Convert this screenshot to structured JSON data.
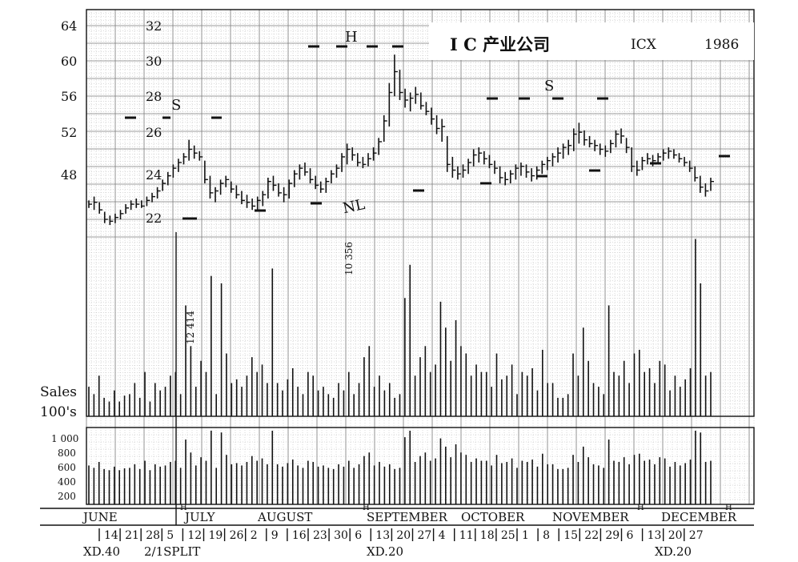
{
  "chart_data": {
    "type": "bar",
    "subtype": "ohlc-bar-with-volume",
    "title": "I C 产业公司",
    "ticker": "ICX",
    "year": "1986",
    "left_axis_ticks": [
      "64",
      "60",
      "56",
      "52",
      "48"
    ],
    "right_axis_ticks": [
      "32",
      "30",
      "28",
      "26",
      "24",
      "22"
    ],
    "price_range_adjusted": [
      21,
      32.5
    ],
    "volume_label_line1": "Sales",
    "volume_label_line2": "100's",
    "volume_axis_ticks": [
      "1 000",
      "800",
      "600",
      "400",
      "200"
    ],
    "annotations": {
      "left_shoulder": "S",
      "head": "H",
      "right_shoulder": "S",
      "neckline": "NL",
      "peak_volume_1": "12 414",
      "peak_volume_2": "10 356"
    },
    "months": [
      "JUNE",
      "JULY",
      "AUGUST",
      "SEPTEMBER",
      "OCTOBER",
      "NOVEMBER",
      "DECEMBER"
    ],
    "week_labels": [
      "14",
      "21",
      "28",
      "5",
      "12",
      "19",
      "26",
      "2",
      "9",
      "16",
      "23",
      "30",
      "6",
      "13",
      "20",
      "27",
      "4",
      "11",
      "18",
      "25",
      "1",
      "8",
      "15",
      "22",
      "29",
      "6",
      "13",
      "20",
      "27"
    ],
    "events": [
      "XD.40",
      "2/1SPLIT",
      "XD.20",
      "XD.20"
    ],
    "price_bars": [
      [
        22.7,
        23.1,
        22.9
      ],
      [
        22.6,
        23.3,
        23.0
      ],
      [
        22.4,
        23.0,
        22.6
      ],
      [
        21.9,
        22.5,
        22.1
      ],
      [
        21.8,
        22.3,
        22.0
      ],
      [
        21.9,
        22.4,
        22.2
      ],
      [
        22.1,
        22.6,
        22.4
      ],
      [
        22.4,
        22.9,
        22.7
      ],
      [
        22.6,
        23.1,
        22.9
      ],
      [
        22.7,
        23.2,
        22.9
      ],
      [
        22.7,
        23.1,
        22.8
      ],
      [
        22.8,
        23.3,
        23.1
      ],
      [
        23.0,
        23.5,
        23.3
      ],
      [
        23.2,
        23.8,
        23.6
      ],
      [
        23.6,
        24.2,
        24.0
      ],
      [
        23.9,
        24.6,
        24.4
      ],
      [
        24.3,
        25.0,
        24.8
      ],
      [
        24.6,
        25.3,
        25.1
      ],
      [
        25.0,
        25.6,
        25.4
      ],
      [
        25.2,
        26.3,
        25.8
      ],
      [
        25.3,
        26.0,
        25.6
      ],
      [
        25.2,
        25.7,
        25.4
      ],
      [
        24.0,
        25.2,
        24.2
      ],
      [
        23.2,
        24.4,
        23.5
      ],
      [
        23.0,
        23.8,
        23.6
      ],
      [
        23.4,
        24.2,
        24.0
      ],
      [
        23.8,
        24.4,
        24.2
      ],
      [
        23.5,
        24.1,
        23.7
      ],
      [
        23.2,
        23.9,
        23.4
      ],
      [
        22.9,
        23.6,
        23.1
      ],
      [
        22.7,
        23.4,
        23.0
      ],
      [
        22.6,
        23.2,
        22.8
      ],
      [
        22.6,
        23.3,
        23.1
      ],
      [
        22.8,
        23.6,
        23.4
      ],
      [
        23.2,
        24.3,
        24.1
      ],
      [
        23.6,
        24.4,
        23.9
      ],
      [
        23.3,
        24.0,
        23.5
      ],
      [
        23.0,
        23.8,
        23.4
      ],
      [
        23.2,
        24.2,
        24.0
      ],
      [
        23.8,
        24.7,
        24.5
      ],
      [
        24.2,
        25.0,
        24.8
      ],
      [
        24.4,
        25.1,
        24.6
      ],
      [
        24.0,
        24.8,
        24.2
      ],
      [
        23.7,
        24.4,
        23.9
      ],
      [
        23.5,
        24.1,
        23.7
      ],
      [
        23.5,
        24.3,
        24.1
      ],
      [
        24.0,
        24.7,
        24.5
      ],
      [
        24.3,
        25.0,
        24.8
      ],
      [
        24.6,
        25.6,
        25.4
      ],
      [
        25.0,
        26.1,
        25.8
      ],
      [
        25.2,
        25.9,
        25.5
      ],
      [
        24.9,
        25.6,
        25.1
      ],
      [
        24.8,
        25.4,
        25.0
      ],
      [
        24.9,
        25.6,
        25.3
      ],
      [
        25.2,
        25.9,
        25.6
      ],
      [
        25.5,
        26.4,
        26.2
      ],
      [
        26.2,
        27.6,
        27.3
      ],
      [
        27.0,
        29.3,
        28.8
      ],
      [
        28.6,
        30.8,
        29.9
      ],
      [
        28.4,
        30.0,
        28.8
      ],
      [
        28.0,
        29.0,
        28.4
      ],
      [
        27.8,
        28.8,
        28.5
      ],
      [
        28.2,
        29.1,
        28.7
      ],
      [
        27.9,
        28.8,
        28.1
      ],
      [
        27.6,
        28.3,
        27.8
      ],
      [
        27.1,
        28.0,
        27.4
      ],
      [
        26.6,
        27.6,
        26.9
      ],
      [
        26.2,
        27.4,
        27.0
      ],
      [
        24.6,
        26.5,
        25.0
      ],
      [
        24.3,
        25.4,
        24.7
      ],
      [
        24.2,
        24.9,
        24.5
      ],
      [
        24.3,
        25.0,
        24.7
      ],
      [
        24.5,
        25.3,
        25.1
      ],
      [
        24.9,
        25.8,
        25.5
      ],
      [
        25.1,
        25.9,
        25.6
      ],
      [
        25.0,
        25.7,
        25.3
      ],
      [
        24.8,
        25.5,
        25.0
      ],
      [
        24.5,
        25.2,
        24.8
      ],
      [
        24.0,
        24.9,
        24.3
      ],
      [
        23.9,
        24.6,
        24.2
      ],
      [
        24.0,
        24.7,
        24.5
      ],
      [
        24.2,
        25.0,
        24.8
      ],
      [
        24.4,
        25.1,
        24.9
      ],
      [
        24.3,
        25.0,
        24.6
      ],
      [
        24.1,
        24.8,
        24.4
      ],
      [
        24.2,
        24.9,
        24.7
      ],
      [
        24.5,
        25.2,
        25.0
      ],
      [
        24.7,
        25.4,
        25.2
      ],
      [
        24.9,
        25.6,
        25.4
      ],
      [
        25.1,
        25.9,
        25.6
      ],
      [
        25.3,
        26.1,
        25.9
      ],
      [
        25.5,
        26.3,
        26.0
      ],
      [
        25.7,
        26.9,
        26.6
      ],
      [
        26.1,
        27.2,
        26.7
      ],
      [
        26.0,
        26.8,
        26.3
      ],
      [
        25.9,
        26.5,
        26.1
      ],
      [
        25.7,
        26.3,
        26.0
      ],
      [
        25.5,
        26.1,
        25.8
      ],
      [
        25.4,
        26.0,
        25.7
      ],
      [
        25.6,
        26.3,
        26.1
      ],
      [
        25.9,
        26.8,
        26.6
      ],
      [
        26.1,
        26.9,
        26.5
      ],
      [
        25.6,
        26.4,
        25.9
      ],
      [
        24.6,
        25.9,
        24.9
      ],
      [
        24.4,
        25.2,
        24.7
      ],
      [
        24.7,
        25.4,
        25.2
      ],
      [
        25.0,
        25.6,
        25.3
      ],
      [
        24.9,
        25.5,
        25.2
      ],
      [
        25.0,
        25.6,
        25.4
      ],
      [
        25.2,
        25.8,
        25.6
      ],
      [
        25.3,
        25.9,
        25.7
      ],
      [
        25.3,
        25.8,
        25.5
      ],
      [
        25.1,
        25.6,
        25.3
      ],
      [
        24.9,
        25.4,
        25.1
      ],
      [
        24.6,
        25.2,
        24.8
      ],
      [
        24.1,
        24.9,
        24.3
      ],
      [
        23.5,
        24.4,
        23.8
      ],
      [
        23.3,
        24.0,
        23.6
      ],
      [
        23.6,
        24.3,
        24.1
      ]
    ],
    "volume_bars_100s": [
      40,
      30,
      55,
      25,
      20,
      35,
      20,
      28,
      30,
      45,
      25,
      60,
      20,
      45,
      35,
      40,
      55,
      60,
      30,
      150,
      95,
      40,
      75,
      60,
      190,
      30,
      180,
      85,
      45,
      50,
      40,
      55,
      80,
      60,
      70,
      45,
      200,
      45,
      35,
      50,
      65,
      40,
      30,
      60,
      55,
      35,
      40,
      30,
      25,
      45,
      35,
      60,
      30,
      45,
      80,
      95,
      40,
      55,
      35,
      45,
      25,
      30,
      160,
      205,
      55,
      80,
      95,
      60,
      70,
      155,
      120,
      75,
      130,
      95,
      85,
      55,
      70,
      60,
      60,
      40,
      85,
      50,
      55,
      70,
      30,
      60,
      55,
      65,
      35,
      90,
      45,
      45,
      25,
      25,
      30,
      85,
      55,
      120,
      75,
      45,
      40,
      30,
      150,
      60,
      55,
      75,
      45,
      85,
      90,
      60,
      65,
      45,
      75,
      70,
      35,
      55,
      40,
      50,
      65,
      240,
      180,
      55,
      60
    ]
  }
}
